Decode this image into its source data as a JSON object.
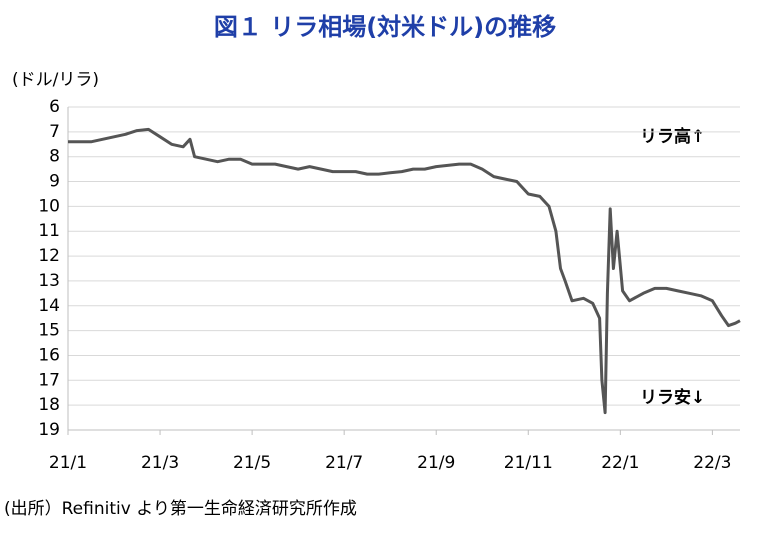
{
  "chart_data": {
    "type": "line",
    "title": "図１ リラ相場(対米ドル)の推移",
    "y_label": "(ドル/リラ)",
    "annotations": [
      "リラ高↑",
      "リラ安↓"
    ],
    "source": "(出所）Refinitiv より第一生命経済研究所作成",
    "color": "#555555",
    "x": [
      0,
      0.25,
      0.5,
      0.75,
      1.0,
      1.25,
      1.5,
      1.75,
      2.0,
      2.25,
      2.5,
      2.65,
      2.75,
      3.0,
      3.25,
      3.5,
      3.75,
      4.0,
      4.25,
      4.5,
      4.75,
      5.0,
      5.25,
      5.5,
      5.75,
      6.0,
      6.25,
      6.5,
      6.75,
      7.0,
      7.25,
      7.5,
      7.75,
      8.0,
      8.25,
      8.5,
      8.75,
      9.0,
      9.25,
      9.5,
      9.75,
      10.0,
      10.25,
      10.45,
      10.6,
      10.7,
      10.8,
      10.95,
      11.2,
      11.4,
      11.55,
      11.6,
      11.67,
      11.72,
      11.78,
      11.85,
      11.93,
      12.05,
      12.2,
      12.5,
      12.75,
      13.0,
      13.25,
      13.5,
      13.75,
      14.0,
      14.2,
      14.35,
      14.5,
      14.6
    ],
    "values": [
      7.4,
      7.4,
      7.4,
      7.3,
      7.2,
      7.1,
      6.95,
      6.9,
      7.2,
      7.5,
      7.6,
      7.3,
      8.0,
      8.1,
      8.2,
      8.1,
      8.1,
      8.3,
      8.3,
      8.3,
      8.4,
      8.5,
      8.4,
      8.5,
      8.6,
      8.6,
      8.6,
      8.7,
      8.7,
      8.65,
      8.6,
      8.5,
      8.5,
      8.4,
      8.35,
      8.3,
      8.3,
      8.5,
      8.8,
      8.9,
      9.0,
      9.5,
      9.6,
      10.0,
      11.0,
      12.5,
      13.0,
      13.8,
      13.7,
      13.9,
      14.5,
      17.0,
      18.3,
      13.5,
      10.1,
      12.5,
      11.0,
      13.4,
      13.8,
      13.5,
      13.3,
      13.3,
      13.4,
      13.5,
      13.6,
      13.8,
      14.4,
      14.8,
      14.7,
      14.6
    ],
    "xlim": [
      0,
      14.6
    ],
    "xticks": [
      {
        "value": 0,
        "label": "21/1"
      },
      {
        "value": 2,
        "label": "21/3"
      },
      {
        "value": 4,
        "label": "21/5"
      },
      {
        "value": 6,
        "label": "21/7"
      },
      {
        "value": 8,
        "label": "21/9"
      },
      {
        "value": 10,
        "label": "21/11"
      },
      {
        "value": 12,
        "label": "22/1"
      },
      {
        "value": 14,
        "label": "22/3"
      }
    ],
    "ylim": [
      19,
      6
    ],
    "yticks": [
      6,
      7,
      8,
      9,
      10,
      11,
      12,
      13,
      14,
      15,
      16,
      17,
      18,
      19
    ],
    "grid": true
  }
}
